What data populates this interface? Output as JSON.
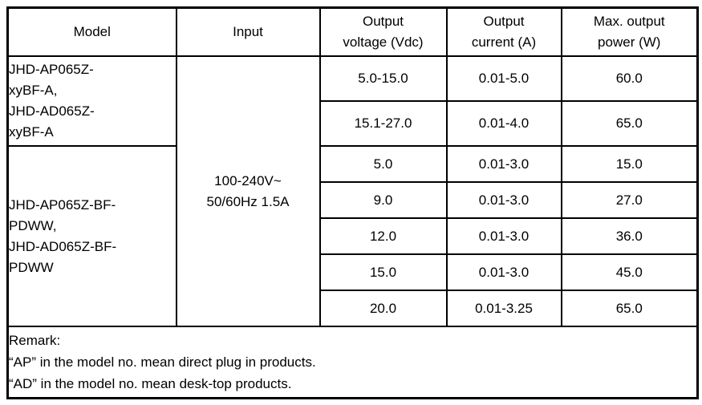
{
  "table": {
    "headers": [
      "Model",
      "Input",
      "Output\nvoltage (Vdc)",
      "Output\ncurrent (A)",
      "Max. output\npower (W)"
    ],
    "groups": [
      {
        "model": "JHD-AP065Z-\nxyBF-A,\nJHD-AD065Z-\nxyBF-A"
      },
      {
        "model": "JHD-AP065Z-BF-\nPDWW,\nJHD-AD065Z-BF-\nPDWW"
      }
    ],
    "input": "100-240V~\n50/60Hz 1.5A",
    "rows": [
      [
        "5.0-15.0",
        "0.01-5.0",
        "60.0"
      ],
      [
        "15.1-27.0",
        "0.01-4.0",
        "65.0"
      ],
      [
        "5.0",
        "0.01-3.0",
        "15.0"
      ],
      [
        "9.0",
        "0.01-3.0",
        "27.0"
      ],
      [
        "12.0",
        "0.01-3.0",
        "36.0"
      ],
      [
        "15.0",
        "0.01-3.0",
        "45.0"
      ],
      [
        "20.0",
        "0.01-3.25",
        "65.0"
      ]
    ],
    "remark": "Remark:\n“AP” in the model no. mean direct plug in products.\n“AD” in the model no. mean desk-top products."
  },
  "colors": {
    "border": "#000000",
    "text": "#000000",
    "background": "#ffffff"
  }
}
